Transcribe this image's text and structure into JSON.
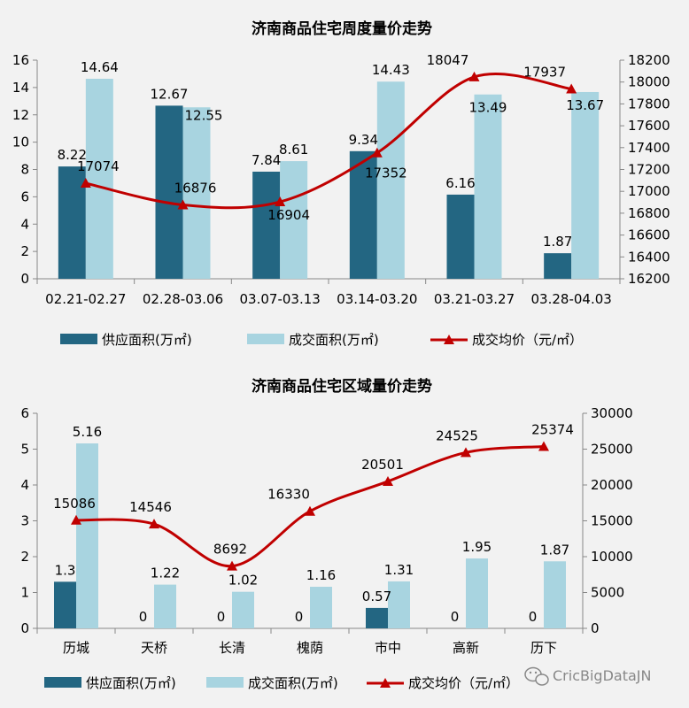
{
  "chart_data": [
    {
      "type": "bar",
      "title": "济南商品住宅周度量价走势",
      "categories": [
        "02.21-02.27",
        "02.28-03.06",
        "03.07-03.13",
        "03.14-03.20",
        "03.21-03.27",
        "03.28-04.03"
      ],
      "series": [
        {
          "name": "供应面积(万㎡)",
          "kind": "bar",
          "axis": "left",
          "values": [
            8.22,
            12.67,
            7.84,
            9.34,
            6.16,
            1.87
          ],
          "labels": [
            "8.22",
            "12.67",
            "7.84",
            "9.34",
            "6.16",
            "1.87"
          ]
        },
        {
          "name": "成交面积(万㎡)",
          "kind": "bar",
          "axis": "left",
          "values": [
            14.64,
            12.55,
            8.61,
            14.43,
            13.49,
            13.67
          ],
          "labels": [
            "14.64",
            "12.55",
            "8.61",
            "14.43",
            "13.49",
            "13.67"
          ]
        },
        {
          "name": "成交均价（元/㎡）",
          "kind": "line",
          "axis": "right",
          "values": [
            17074,
            16876,
            16904,
            17352,
            18047,
            17937
          ],
          "labels": [
            "17074",
            "16876",
            "16904",
            "17352",
            "18047",
            "17937"
          ]
        }
      ],
      "y_left": {
        "min": 0,
        "max": 16,
        "ticks": [
          "0",
          "2",
          "4",
          "6",
          "8",
          "10",
          "12",
          "14",
          "16"
        ]
      },
      "y_right": {
        "min": 16200,
        "max": 18200,
        "ticks": [
          "16200",
          "16400",
          "16600",
          "16800",
          "17000",
          "17200",
          "17400",
          "17600",
          "17800",
          "18000",
          "18200"
        ]
      },
      "grid": false,
      "legend_position": "bottom",
      "colors": {
        "supply": "#236682",
        "deal": "#a8d4e0",
        "price": "#c00000"
      }
    },
    {
      "type": "bar",
      "title": "济南商品住宅区域量价走势",
      "categories": [
        "历城",
        "天桥",
        "长清",
        "槐荫",
        "市中",
        "高新",
        "历下"
      ],
      "series": [
        {
          "name": "供应面积(万㎡)",
          "kind": "bar",
          "axis": "left",
          "values": [
            1.3,
            0,
            0,
            0,
            0.57,
            0,
            0
          ],
          "labels": [
            "1.3",
            "0",
            "0",
            "0",
            "0.57",
            "0",
            "0"
          ]
        },
        {
          "name": "成交面积(万㎡)",
          "kind": "bar",
          "axis": "left",
          "values": [
            5.16,
            1.22,
            1.02,
            1.16,
            1.31,
            1.95,
            1.87
          ],
          "labels": [
            "5.16",
            "1.22",
            "1.02",
            "1.16",
            "1.31",
            "1.95",
            "1.87"
          ]
        },
        {
          "name": "成交均价（元/㎡）",
          "kind": "line",
          "axis": "right",
          "values": [
            15086,
            14546,
            8692,
            16330,
            20501,
            24525,
            25374
          ],
          "labels": [
            "15086",
            "14546",
            "8692",
            "16330",
            "20501",
            "24525",
            "25374"
          ]
        }
      ],
      "y_left": {
        "min": 0,
        "max": 6,
        "ticks": [
          "0",
          "1",
          "2",
          "3",
          "4",
          "5",
          "6"
        ]
      },
      "y_right": {
        "min": 0,
        "max": 30000,
        "ticks": [
          "0",
          "5000",
          "10000",
          "15000",
          "20000",
          "25000",
          "30000"
        ]
      },
      "grid": false,
      "legend_position": "bottom",
      "colors": {
        "supply": "#236682",
        "deal": "#a8d4e0",
        "price": "#c00000"
      }
    }
  ],
  "watermark": {
    "text": "CricBigDataJN",
    "icon": "wechat-icon"
  }
}
